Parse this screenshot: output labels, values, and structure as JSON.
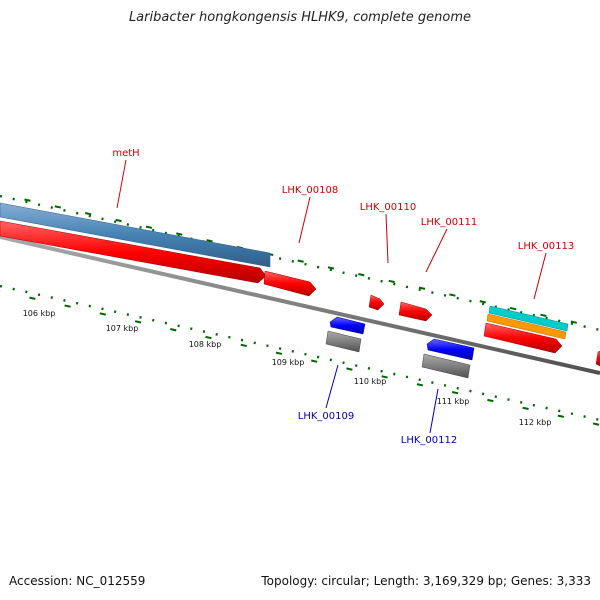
{
  "title": "Laribacter hongkongensis HLHK9, complete genome",
  "footer": {
    "accession": "Accession: NC_012559",
    "topology": "Topology: circular; Length: 3,169,329 bp; Genes: 3,333"
  },
  "colors": {
    "cds_forward": "#ff0000",
    "cds_reverse": "#0000ff",
    "gene_track": "#4682b4",
    "rna_cyan": "#00cccc",
    "rna_orange": "#ff9900",
    "gray_track": "#808080",
    "gc_dots": "#006600",
    "label_forward": "#cc0000",
    "label_reverse": "#0000aa"
  },
  "ticks": [
    "106 kbp",
    "107 kbp",
    "108 kbp",
    "109 kbp",
    "110 kbp",
    "111 kbp",
    "112 kbp"
  ],
  "labels": {
    "metH": "metH",
    "LHK_00108": "LHK_00108",
    "LHK_00110": "LHK_00110",
    "LHK_00111": "LHK_00111",
    "LHK_00113": "LHK_00113",
    "LHK_00109": "LHK_00109",
    "LHK_00112": "LHK_00112"
  }
}
